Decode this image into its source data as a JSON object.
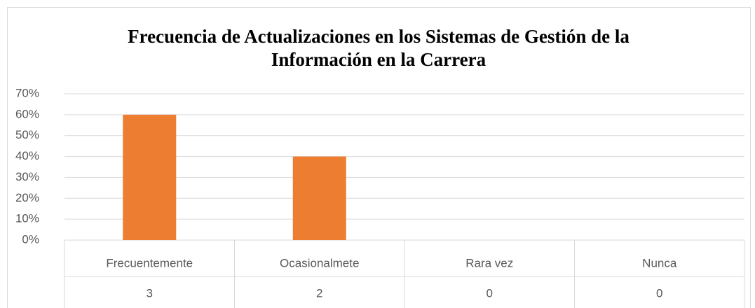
{
  "chart_data": {
    "type": "bar",
    "title": [
      "Frecuencia de Actualizaciones en los Sistemas de Gestión de la",
      "Información en la Carrera"
    ],
    "categories": [
      "Frecuentemente",
      "Ocasionalmete",
      "Rara vez",
      "Nunca"
    ],
    "values": [
      60,
      40,
      0,
      0
    ],
    "counts": [
      3,
      2,
      0,
      0
    ],
    "color": "#ed7d31",
    "ylim": [
      0,
      70
    ],
    "yticks": [
      {
        "value": 0,
        "label": "0%"
      },
      {
        "value": 10,
        "label": "10%"
      },
      {
        "value": 20,
        "label": "20%"
      },
      {
        "value": 30,
        "label": "30%"
      },
      {
        "value": 40,
        "label": "40%"
      },
      {
        "value": 50,
        "label": "50%"
      },
      {
        "value": 60,
        "label": "60%"
      },
      {
        "value": 70,
        "label": "70%"
      }
    ],
    "grid": true
  }
}
